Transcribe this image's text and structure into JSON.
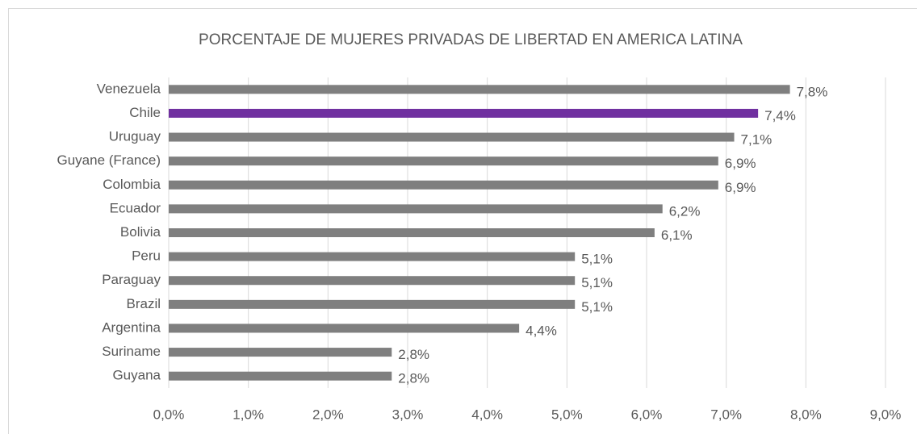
{
  "chart_data": {
    "type": "bar",
    "orientation": "horizontal",
    "title": "PORCENTAJE DE MUJERES PRIVADAS DE LIBERTAD EN AMERICA LATINA",
    "categories": [
      "Venezuela",
      "Chile",
      "Uruguay",
      "Guyane (France)",
      "Colombia",
      "Ecuador",
      "Bolivia",
      "Peru",
      "Paraguay",
      "Brazil",
      "Argentina",
      "Suriname",
      "Guyana"
    ],
    "values": [
      7.8,
      7.4,
      7.1,
      6.9,
      6.9,
      6.2,
      6.1,
      5.1,
      5.1,
      5.1,
      4.4,
      2.8,
      2.8
    ],
    "value_labels": [
      "7,8%",
      "7,4%",
      "7,1%",
      "6,9%",
      "6,9%",
      "6,2%",
      "6,1%",
      "5,1%",
      "5,1%",
      "5,1%",
      "4,4%",
      "2,8%",
      "2,8%"
    ],
    "colors": [
      "#7f7f7f",
      "#7030a0",
      "#7f7f7f",
      "#7f7f7f",
      "#7f7f7f",
      "#7f7f7f",
      "#7f7f7f",
      "#7f7f7f",
      "#7f7f7f",
      "#7f7f7f",
      "#7f7f7f",
      "#7f7f7f",
      "#7f7f7f"
    ],
    "xlim": [
      0,
      9
    ],
    "xticks": [
      {
        "value": 0,
        "label": "0,0%"
      },
      {
        "value": 1,
        "label": "1,0%"
      },
      {
        "value": 2,
        "label": "2,0%"
      },
      {
        "value": 3,
        "label": "3,0%"
      },
      {
        "value": 4,
        "label": "4,0%"
      },
      {
        "value": 5,
        "label": "5,0%"
      },
      {
        "value": 6,
        "label": "6,0%"
      },
      {
        "value": 7,
        "label": "7,0%"
      },
      {
        "value": 8,
        "label": "8,0%"
      },
      {
        "value": 9,
        "label": "9,0%"
      }
    ],
    "grid": true
  }
}
